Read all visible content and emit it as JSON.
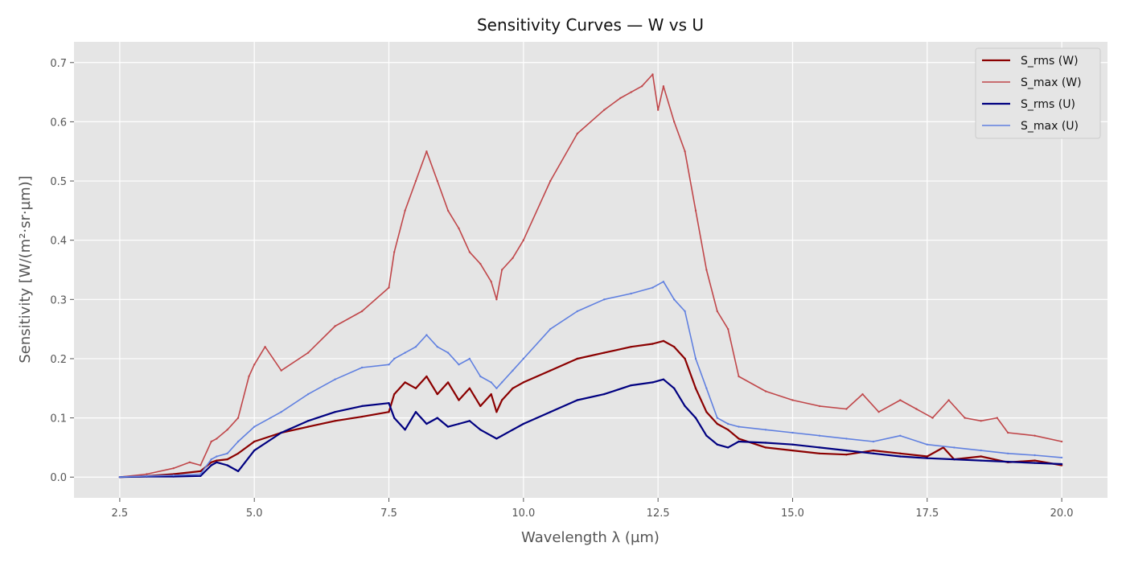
{
  "chart_data": {
    "type": "line",
    "title": "Sensitivity Curves — W vs U",
    "xlabel": "Wavelength λ (µm)",
    "ylabel": "Sensitivity [W/(m²·sr·µm)]",
    "xlim": [
      1.65,
      20.85
    ],
    "ylim": [
      -0.035,
      0.735
    ],
    "xticks": [
      2.5,
      5.0,
      7.5,
      10.0,
      12.5,
      15.0,
      17.5,
      20.0
    ],
    "xtick_labels": [
      "2.5",
      "5.0",
      "7.5",
      "10.0",
      "12.5",
      "15.0",
      "17.5",
      "20.0"
    ],
    "yticks": [
      0.0,
      0.1,
      0.2,
      0.3,
      0.4,
      0.5,
      0.6,
      0.7
    ],
    "ytick_labels": [
      "0.0",
      "0.1",
      "0.2",
      "0.3",
      "0.4",
      "0.5",
      "0.6",
      "0.7"
    ],
    "grid": true,
    "style": "ggplot",
    "legend_position": "top-right",
    "series": [
      {
        "name": "S_rms (W)",
        "color": "#8b0000",
        "width": 2.2,
        "x": [
          2.5,
          3.0,
          3.5,
          4.0,
          4.2,
          4.3,
          4.5,
          4.7,
          5.0,
          5.5,
          6.0,
          6.5,
          7.0,
          7.5,
          7.6,
          7.8,
          8.0,
          8.2,
          8.4,
          8.6,
          8.8,
          9.0,
          9.2,
          9.4,
          9.5,
          9.6,
          9.8,
          10.0,
          10.5,
          11.0,
          11.5,
          12.0,
          12.4,
          12.6,
          12.8,
          13.0,
          13.2,
          13.4,
          13.6,
          13.8,
          14.0,
          14.5,
          15.0,
          15.5,
          16.0,
          16.5,
          17.0,
          17.5,
          17.8,
          18.0,
          18.5,
          19.0,
          19.5,
          20.0
        ],
        "y": [
          0.0,
          0.002,
          0.005,
          0.01,
          0.025,
          0.028,
          0.03,
          0.04,
          0.06,
          0.075,
          0.085,
          0.095,
          0.102,
          0.11,
          0.14,
          0.16,
          0.15,
          0.17,
          0.14,
          0.16,
          0.13,
          0.15,
          0.12,
          0.14,
          0.11,
          0.13,
          0.15,
          0.16,
          0.18,
          0.2,
          0.21,
          0.22,
          0.225,
          0.23,
          0.22,
          0.2,
          0.15,
          0.11,
          0.09,
          0.08,
          0.065,
          0.05,
          0.045,
          0.04,
          0.038,
          0.045,
          0.04,
          0.035,
          0.05,
          0.03,
          0.035,
          0.025,
          0.028,
          0.02
        ]
      },
      {
        "name": "S_max (W)",
        "color": "#c0474a",
        "width": 1.6,
        "x": [
          2.5,
          3.0,
          3.5,
          3.8,
          4.0,
          4.2,
          4.3,
          4.5,
          4.7,
          4.9,
          5.0,
          5.2,
          5.5,
          6.0,
          6.5,
          7.0,
          7.5,
          7.6,
          7.8,
          8.0,
          8.2,
          8.4,
          8.6,
          8.8,
          9.0,
          9.2,
          9.4,
          9.5,
          9.6,
          9.8,
          10.0,
          10.5,
          11.0,
          11.5,
          11.8,
          12.0,
          12.2,
          12.4,
          12.5,
          12.6,
          12.8,
          13.0,
          13.2,
          13.4,
          13.6,
          13.8,
          14.0,
          14.5,
          15.0,
          15.5,
          16.0,
          16.3,
          16.6,
          17.0,
          17.3,
          17.6,
          17.9,
          18.2,
          18.5,
          18.8,
          19.0,
          19.5,
          20.0
        ],
        "y": [
          0.0,
          0.005,
          0.015,
          0.025,
          0.02,
          0.06,
          0.065,
          0.08,
          0.1,
          0.17,
          0.19,
          0.22,
          0.18,
          0.21,
          0.255,
          0.28,
          0.32,
          0.38,
          0.45,
          0.5,
          0.55,
          0.5,
          0.45,
          0.42,
          0.38,
          0.36,
          0.33,
          0.3,
          0.35,
          0.37,
          0.4,
          0.5,
          0.58,
          0.62,
          0.64,
          0.65,
          0.66,
          0.68,
          0.62,
          0.66,
          0.6,
          0.55,
          0.45,
          0.35,
          0.28,
          0.25,
          0.17,
          0.145,
          0.13,
          0.12,
          0.115,
          0.14,
          0.11,
          0.13,
          0.115,
          0.1,
          0.13,
          0.1,
          0.095,
          0.1,
          0.075,
          0.07,
          0.06
        ]
      },
      {
        "name": "S_rms (U)",
        "color": "#000080",
        "width": 2.2,
        "x": [
          2.5,
          3.0,
          3.5,
          4.0,
          4.2,
          4.3,
          4.5,
          4.7,
          5.0,
          5.5,
          6.0,
          6.5,
          7.0,
          7.5,
          7.6,
          7.8,
          8.0,
          8.2,
          8.4,
          8.6,
          8.8,
          9.0,
          9.2,
          9.4,
          9.5,
          9.6,
          9.8,
          10.0,
          10.5,
          11.0,
          11.5,
          12.0,
          12.4,
          12.6,
          12.8,
          13.0,
          13.2,
          13.4,
          13.6,
          13.8,
          14.0,
          14.5,
          15.0,
          15.5,
          16.0,
          16.5,
          17.0,
          17.5,
          18.0,
          18.5,
          19.0,
          19.5,
          20.0
        ],
        "y": [
          0.0,
          0.001,
          0.001,
          0.002,
          0.02,
          0.025,
          0.02,
          0.01,
          0.045,
          0.075,
          0.095,
          0.11,
          0.12,
          0.125,
          0.1,
          0.08,
          0.11,
          0.09,
          0.1,
          0.085,
          0.09,
          0.095,
          0.08,
          0.07,
          0.065,
          0.07,
          0.08,
          0.09,
          0.11,
          0.13,
          0.14,
          0.155,
          0.16,
          0.165,
          0.15,
          0.12,
          0.1,
          0.07,
          0.055,
          0.05,
          0.06,
          0.058,
          0.055,
          0.05,
          0.045,
          0.04,
          0.035,
          0.032,
          0.03,
          0.028,
          0.026,
          0.024,
          0.022
        ]
      },
      {
        "name": "S_max (U)",
        "color": "#6080e0",
        "width": 1.6,
        "x": [
          2.5,
          3.0,
          3.5,
          4.0,
          4.2,
          4.3,
          4.5,
          4.7,
          5.0,
          5.5,
          6.0,
          6.5,
          7.0,
          7.5,
          7.6,
          7.8,
          8.0,
          8.2,
          8.4,
          8.6,
          8.8,
          9.0,
          9.2,
          9.4,
          9.5,
          9.6,
          9.8,
          10.0,
          10.5,
          11.0,
          11.5,
          12.0,
          12.4,
          12.6,
          12.8,
          13.0,
          13.2,
          13.4,
          13.6,
          13.8,
          14.0,
          14.5,
          15.0,
          15.5,
          16.0,
          16.5,
          17.0,
          17.5,
          18.0,
          18.5,
          19.0,
          19.5,
          20.0
        ],
        "y": [
          0.0,
          0.002,
          0.003,
          0.005,
          0.03,
          0.035,
          0.04,
          0.06,
          0.085,
          0.11,
          0.14,
          0.165,
          0.185,
          0.19,
          0.2,
          0.21,
          0.22,
          0.24,
          0.22,
          0.21,
          0.19,
          0.2,
          0.17,
          0.16,
          0.15,
          0.16,
          0.18,
          0.2,
          0.25,
          0.28,
          0.3,
          0.31,
          0.32,
          0.33,
          0.3,
          0.28,
          0.2,
          0.15,
          0.1,
          0.09,
          0.085,
          0.08,
          0.075,
          0.07,
          0.065,
          0.06,
          0.07,
          0.055,
          0.05,
          0.045,
          0.04,
          0.037,
          0.033
        ]
      }
    ]
  }
}
